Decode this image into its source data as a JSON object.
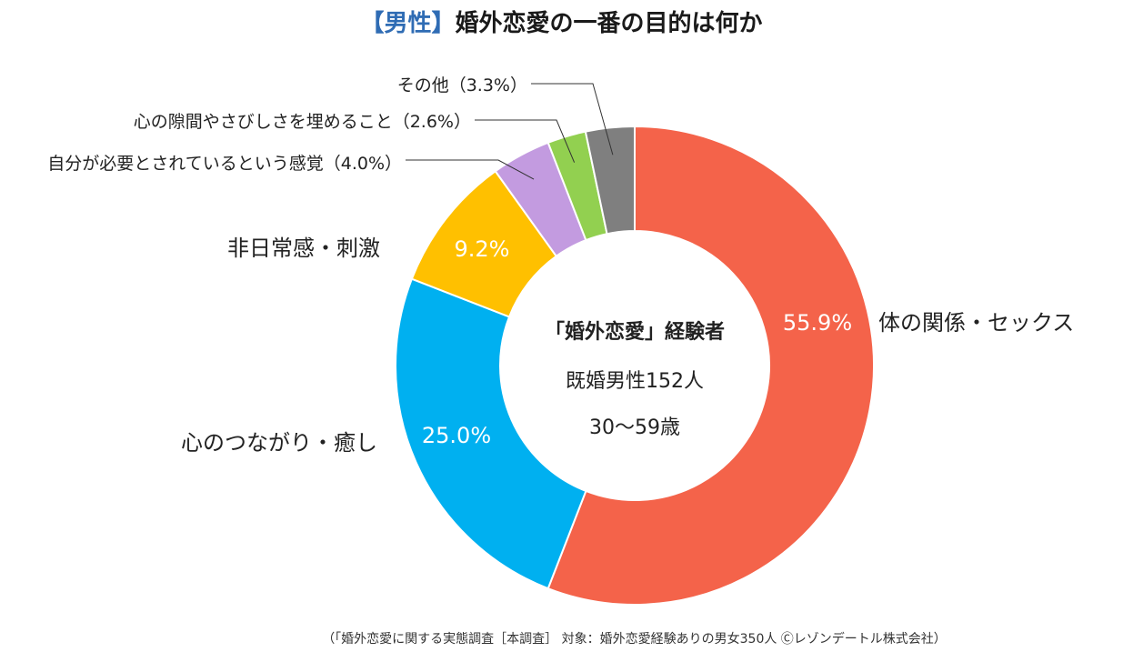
{
  "title": {
    "tag": "【男性】",
    "main": "婚外恋愛の一番の目的は何か"
  },
  "center": {
    "line1": "「婚外恋愛」経験者",
    "line2": "既婚男性152人",
    "line3": "30～59歳"
  },
  "footer": "（「婚外恋愛に関する実態調査［本調査］ 対象：婚外恋愛経験ありの男女350人 Ⓒレゾンデートル株式会社）",
  "chart_data": {
    "type": "pie",
    "donut": true,
    "slices": [
      {
        "label": "体の関係・セックス",
        "value": 55.9,
        "pct_label": "55.9%",
        "color": "#f4634a"
      },
      {
        "label": "心のつながり・癒し",
        "value": 25.0,
        "pct_label": "25.0%",
        "color": "#00b0f0"
      },
      {
        "label": "非日常感・刺激",
        "value": 9.2,
        "pct_label": "9.2%",
        "color": "#ffc000"
      },
      {
        "label": "自分が必要とされているという感覚（4.0%）",
        "value": 4.0,
        "pct_label": "",
        "color": "#c39be0"
      },
      {
        "label": "心の隙間やさびしさを埋めること（2.6%）",
        "value": 2.6,
        "pct_label": "",
        "color": "#92d050"
      },
      {
        "label": "その他（3.3%）",
        "value": 3.3,
        "pct_label": "",
        "color": "#7f7f7f"
      }
    ]
  }
}
